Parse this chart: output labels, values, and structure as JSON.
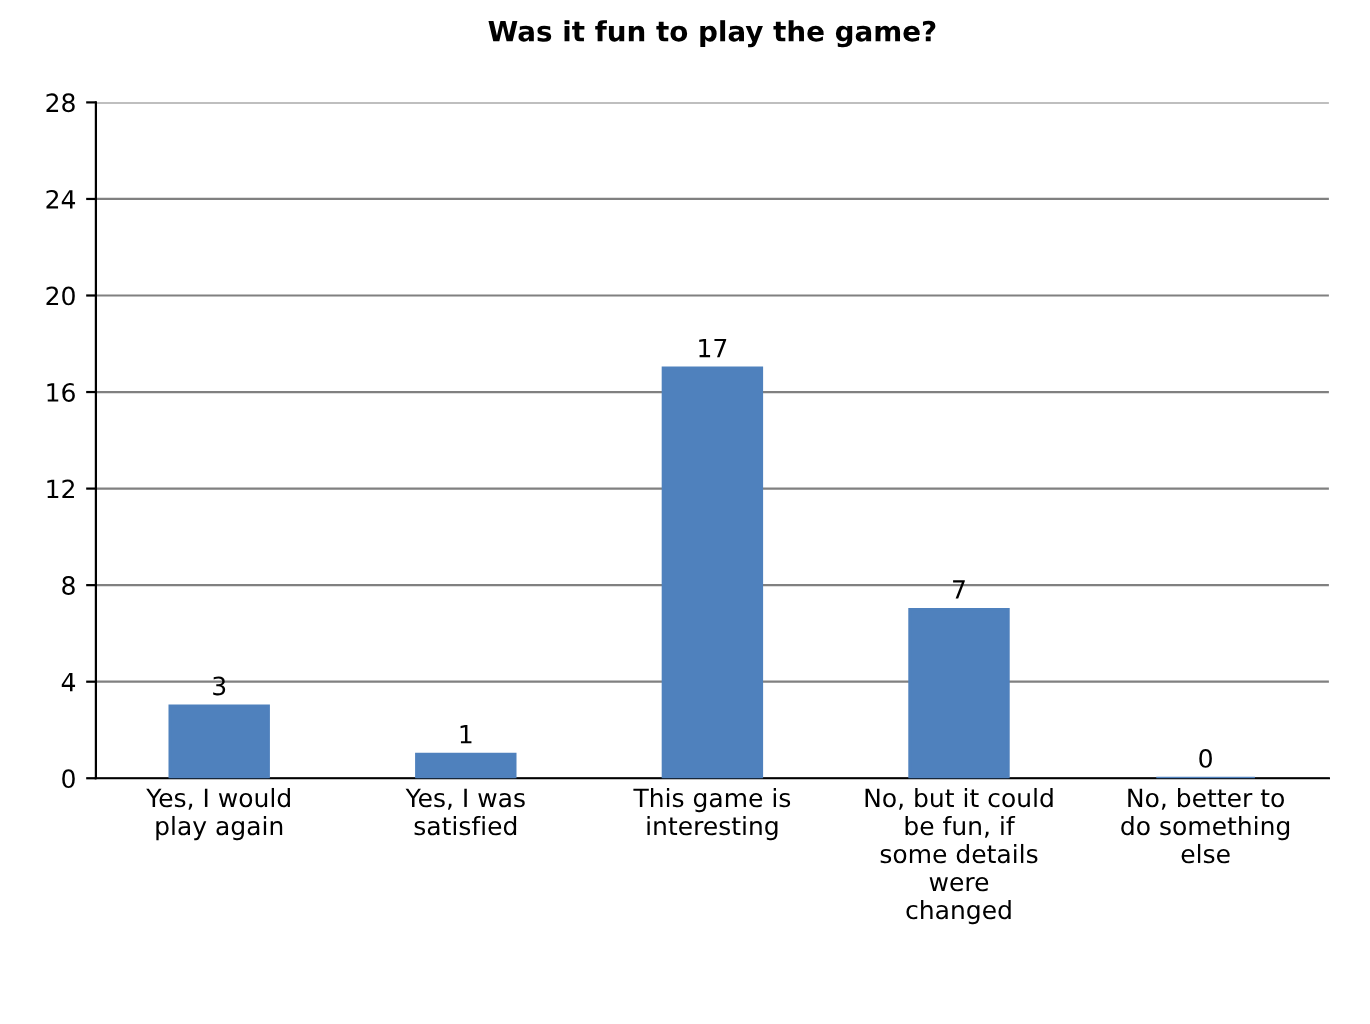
{
  "chart_data": {
    "type": "bar",
    "title": "Was it fun to play the game?",
    "categories": [
      "Yes, I would\nplay again",
      "Yes, I was\nsatisfied",
      "This game is\ninteresting",
      "No, but it could\nbe fun, if\nsome details\nwere\nchanged",
      "No, better to\ndo something\nelse"
    ],
    "values": [
      3,
      1,
      17,
      7,
      0
    ],
    "color": "#4f81bd",
    "ylim": [
      0,
      28
    ],
    "yticks": [
      0,
      4,
      8,
      12,
      16,
      20,
      24,
      28
    ],
    "grid": "y",
    "data_labels": true
  }
}
